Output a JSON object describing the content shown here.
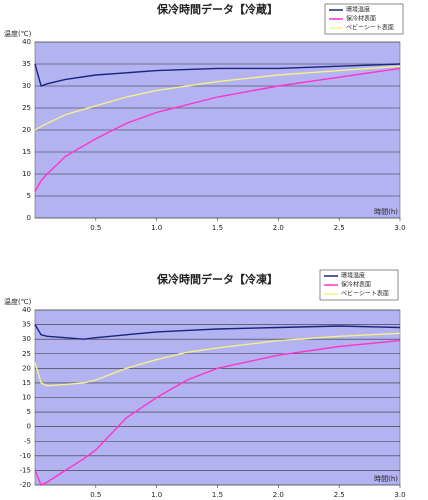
{
  "chart_data": [
    {
      "type": "line",
      "title": "保冷時間データ【冷蔵】",
      "y_label": "温度(℃)",
      "x_label": "時間(h)",
      "x": [
        0,
        0.05,
        0.1,
        0.25,
        0.5,
        0.75,
        1,
        1.5,
        2,
        2.5,
        3
      ],
      "series": [
        {
          "name": "環境温度",
          "color": "#1a237e",
          "values": [
            35,
            30,
            30.5,
            31.5,
            32.5,
            33,
            33.5,
            34,
            34,
            34.5,
            35
          ]
        },
        {
          "name": "保冷材表面",
          "color": "#ff33cc",
          "values": [
            6,
            8.5,
            10,
            14,
            18,
            21.5,
            24,
            27.5,
            30,
            32,
            34
          ]
        },
        {
          "name": "ペビーシート表面",
          "color": "#f5f08a",
          "values": [
            20,
            20.8,
            21.5,
            23.5,
            25.5,
            27.5,
            29,
            31,
            32.5,
            33.5,
            34.5
          ]
        }
      ],
      "xlim": [
        0,
        3
      ],
      "xticks": [
        0.5,
        {
          "value": 1,
          "label": "1.0"
        },
        1.5,
        {
          "value": 2,
          "label": "2.0"
        },
        2.5,
        {
          "value": 3,
          "label": "3.0"
        }
      ],
      "ylim": [
        0,
        40
      ],
      "yticks": [
        0,
        5,
        10,
        15,
        20,
        25,
        30,
        35,
        40
      ],
      "grid": true
    },
    {
      "type": "line",
      "title": "保冷時間データ【冷凍】",
      "y_label": "温度(℃)",
      "x_label": "時間(h)",
      "x": [
        0,
        0.05,
        0.1,
        0.25,
        0.4,
        0.5,
        0.75,
        1,
        1.25,
        1.5,
        2,
        2.5,
        3
      ],
      "series": [
        {
          "name": "環境温度",
          "color": "#1a237e",
          "values": [
            35,
            31.5,
            31,
            30.5,
            30,
            30.5,
            31.5,
            32.5,
            33,
            33.5,
            34,
            34.5,
            34
          ]
        },
        {
          "name": "保冷材表面",
          "color": "#ff33cc",
          "values": [
            -15,
            -20,
            -19,
            -15,
            -11,
            -8,
            3,
            10,
            16,
            20,
            24.5,
            27.5,
            29.5
          ]
        },
        {
          "name": "ペビーシート表面",
          "color": "#f5f08a",
          "values": [
            22,
            15,
            14,
            14.5,
            15,
            16,
            20,
            23,
            25.5,
            27,
            29.5,
            31,
            32
          ]
        }
      ],
      "xlim": [
        0,
        3
      ],
      "xticks": [
        0.5,
        {
          "value": 1,
          "label": "1.0"
        },
        1.5,
        {
          "value": 2,
          "label": "2.0"
        },
        2.5,
        {
          "value": 3,
          "label": "3.0"
        }
      ],
      "ylim": [
        -20,
        40
      ],
      "yticks": [
        -20,
        -15,
        -10,
        -5,
        0,
        5,
        10,
        15,
        20,
        25,
        30,
        35,
        40
      ],
      "grid": true
    }
  ]
}
